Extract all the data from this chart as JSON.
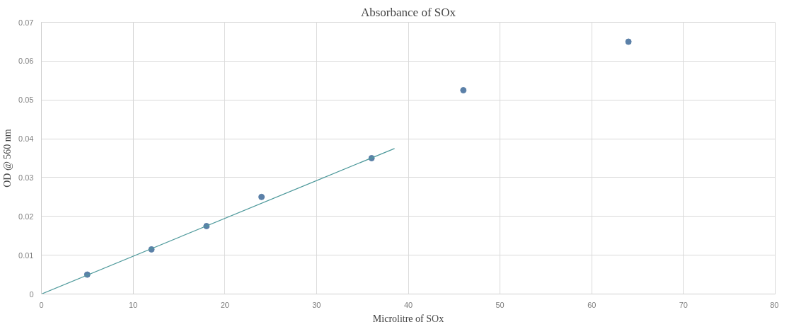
{
  "chart_data": {
    "type": "scatter",
    "title": "Absorbance of SOx",
    "xlabel": "Microlitre of SOx",
    "ylabel": "OD @ 560 nm",
    "xlim": [
      0,
      80
    ],
    "xticks": [
      0,
      10,
      20,
      30,
      40,
      50,
      60,
      70,
      80
    ],
    "ylim": [
      0,
      0.07
    ],
    "yticks": [
      0,
      0.01,
      0.02,
      0.03,
      0.04,
      0.05,
      0.06,
      0.07
    ],
    "grid": true,
    "series": [
      {
        "marker": "circle",
        "color": "#5b80a8",
        "x": [
          5,
          12,
          18,
          24,
          36,
          46,
          64
        ],
        "values": [
          0.005,
          0.0115,
          0.0175,
          0.025,
          0.035,
          0.0525,
          0.065
        ]
      },
      {
        "type": "line",
        "color": "#4f9a9c",
        "x": [
          0,
          38.5
        ],
        "values": [
          0,
          0.0375
        ]
      }
    ]
  }
}
